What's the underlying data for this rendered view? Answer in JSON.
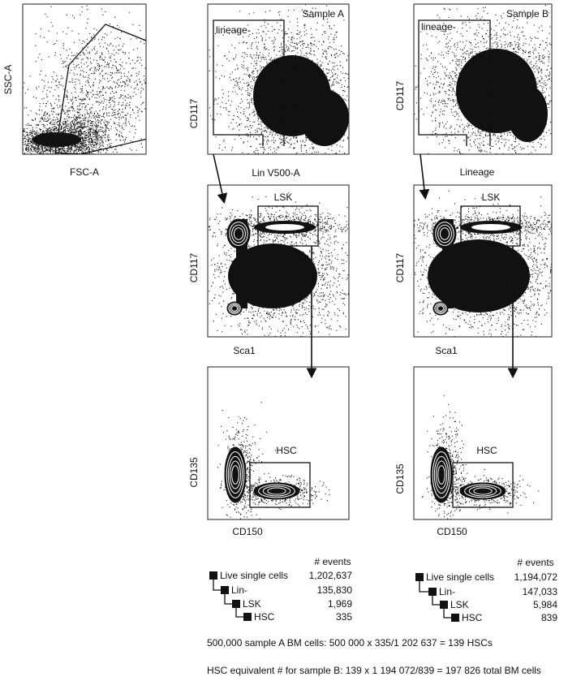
{
  "pre_gate": {
    "x_label": "FSC-A",
    "y_label": "SSC-A"
  },
  "sample_a": {
    "title": "Sample A",
    "lineage": {
      "gate": "lineage-",
      "x_label": "Lin V500-A",
      "y_label": "CD117"
    },
    "lsk": {
      "gate": "LSK",
      "x_label": "Sca1",
      "y_label": "CD117"
    },
    "hsc": {
      "gate": "HSC",
      "x_label": "CD150",
      "y_label": "CD135"
    },
    "table": {
      "header": "# events",
      "rows": [
        {
          "label": "Live single cells",
          "count": "1,202,637"
        },
        {
          "label": "Lin-",
          "count": "135,830"
        },
        {
          "label": "LSK",
          "count": "1,969"
        },
        {
          "label": "HSC",
          "count": "335"
        }
      ]
    }
  },
  "sample_b": {
    "title": "Sample B",
    "lineage": {
      "gate": "lineage-",
      "x_label": "Lineage",
      "y_label": "CD117"
    },
    "lsk": {
      "gate": "LSK",
      "x_label": "Sca1",
      "y_label": "CD117"
    },
    "hsc": {
      "gate": "HSC",
      "x_label": "CD150",
      "y_label": "CD135"
    },
    "table": {
      "header": "# events",
      "rows": [
        {
          "label": "Live single cells",
          "count": "1,194,072"
        },
        {
          "label": "Lin-",
          "count": "147,033"
        },
        {
          "label": "LSK",
          "count": "5,984"
        },
        {
          "label": "HSC",
          "count": "839"
        }
      ]
    }
  },
  "notes": [
    "500,000 sample A BM cells:  500 000 x 335/1 202 637 = 139 HSCs",
    "HSC equivalent # for sample B: 139 x 1 194 072/839 = 197 826 total BM cells"
  ]
}
